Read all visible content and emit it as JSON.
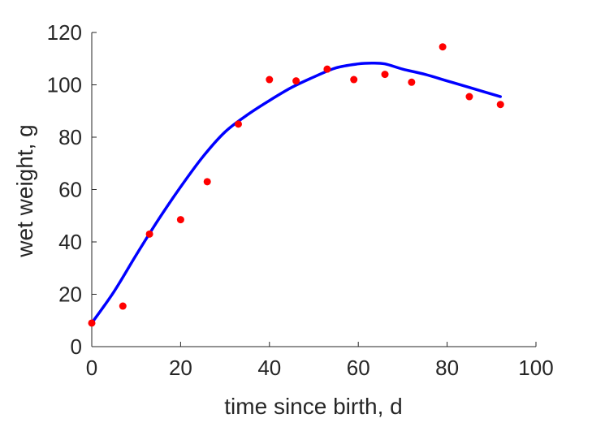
{
  "chart_data": {
    "type": "scatter",
    "title": "",
    "xlabel": "time since birth, d",
    "ylabel": "wet weight, g",
    "xlim": [
      0,
      100
    ],
    "ylim": [
      0,
      120
    ],
    "xticks": [
      0,
      20,
      40,
      60,
      80,
      100
    ],
    "yticks": [
      0,
      20,
      40,
      60,
      80,
      100,
      120
    ],
    "grid": false,
    "series": [
      {
        "kind": "scatter",
        "color": "#ff0000",
        "x": [
          0,
          7,
          13,
          20,
          26,
          33,
          40,
          46,
          53,
          59,
          66,
          72,
          79,
          85,
          92
        ],
        "y": [
          9,
          15.5,
          43,
          48.5,
          63,
          85,
          102,
          101.5,
          106,
          102,
          104,
          101,
          114.5,
          95.5,
          92.5
        ]
      },
      {
        "kind": "line",
        "color": "#0000ff",
        "x": [
          0,
          5,
          10,
          15,
          20,
          25,
          30,
          35,
          40,
          45,
          50,
          55,
          60,
          63,
          66,
          70,
          75,
          80,
          85,
          92
        ],
        "y": [
          9,
          21,
          35,
          48.5,
          61,
          72.5,
          82,
          88.5,
          94,
          99,
          103,
          106.5,
          108,
          108.3,
          108,
          106,
          104,
          101.5,
          99,
          95.5
        ]
      }
    ]
  }
}
